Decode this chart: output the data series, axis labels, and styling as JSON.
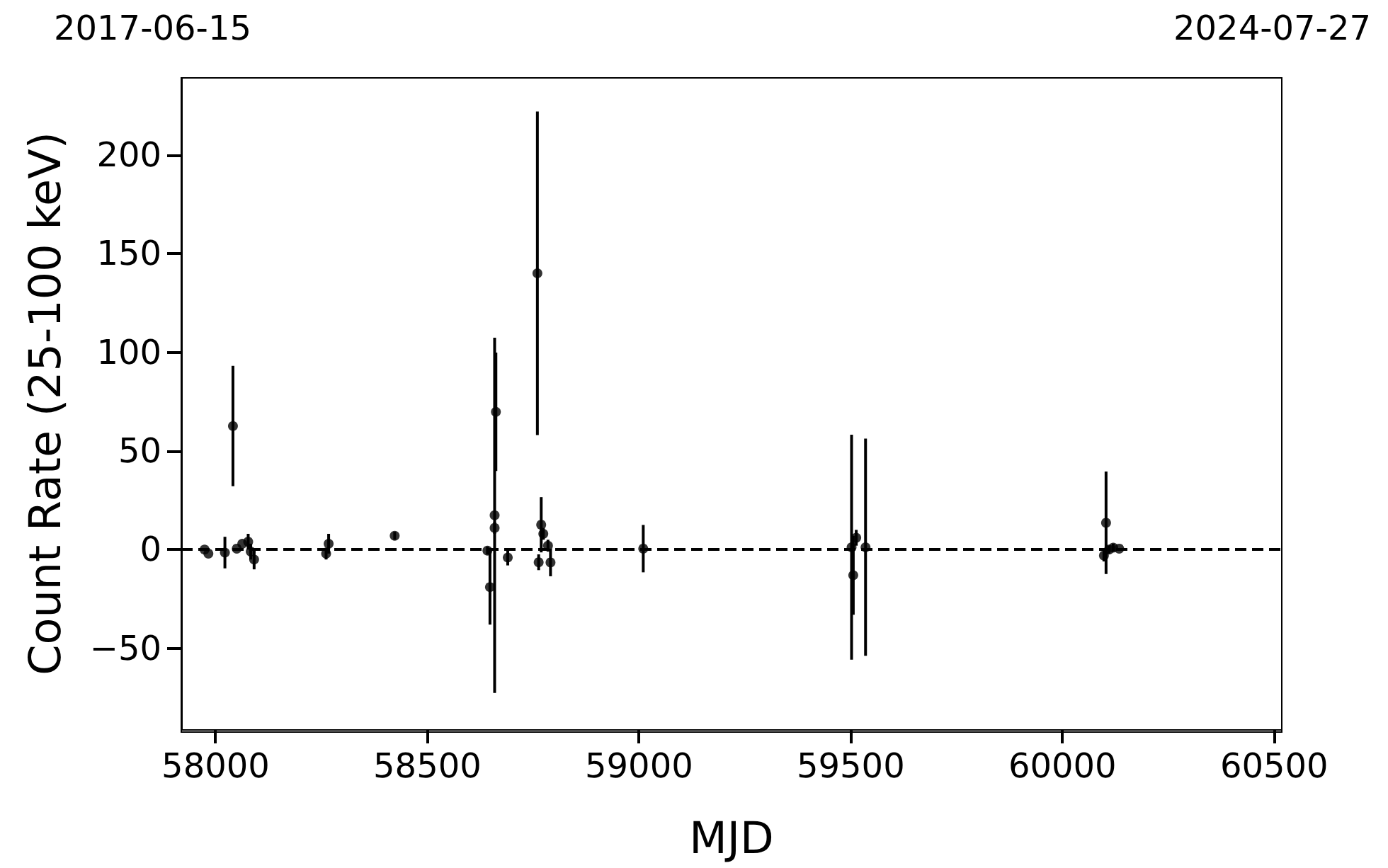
{
  "chart_data": {
    "type": "scatter",
    "xlabel": "MJD",
    "ylabel": "Count Rate (25-100 keV)",
    "annotations": [
      "2017-06-15",
      "2024-07-27"
    ],
    "x": [
      57974,
      57983,
      58022,
      58041,
      58050,
      58063,
      58077,
      58083,
      58091,
      58261,
      58267,
      58423,
      58642,
      58648,
      58659,
      58659,
      58662,
      58690,
      58760,
      58763,
      58769,
      58774,
      58785,
      58791,
      59010,
      59502,
      59506,
      59513,
      59535,
      60098,
      60103,
      60110,
      60120,
      60134
    ],
    "values": [
      0,
      -2,
      -1.5,
      62.6,
      0.5,
      3,
      4,
      -1,
      -5,
      -2,
      3,
      7,
      -0.5,
      -19,
      11,
      17.4,
      69.8,
      -4,
      140,
      -6.4,
      12.6,
      8,
      2,
      -6.5,
      0.5,
      1.2,
      -13,
      6,
      1.2,
      -3,
      13.6,
      0,
      1,
      0.5
    ],
    "errors": [
      null,
      null,
      8,
      30.5,
      null,
      null,
      4,
      4,
      5,
      3,
      5,
      2,
      2,
      19,
      3,
      90,
      30,
      4,
      82,
      4,
      14,
      3,
      3,
      7,
      12,
      57,
      20,
      4,
      55,
      3,
      26,
      2,
      2,
      null
    ],
    "color": "#000000",
    "marker": "circle",
    "xlim": [
      57919,
      60518
    ],
    "xticks": [
      58000,
      58500,
      59000,
      59500,
      60000,
      60500
    ],
    "ylim": [
      -91,
      239
    ],
    "yticks": [
      -50,
      0,
      50,
      100,
      150,
      200
    ],
    "grid": false,
    "ref_lines": [
      {
        "axis": "y",
        "value": 0,
        "color": "#000000",
        "line_style": "dashed"
      }
    ]
  }
}
